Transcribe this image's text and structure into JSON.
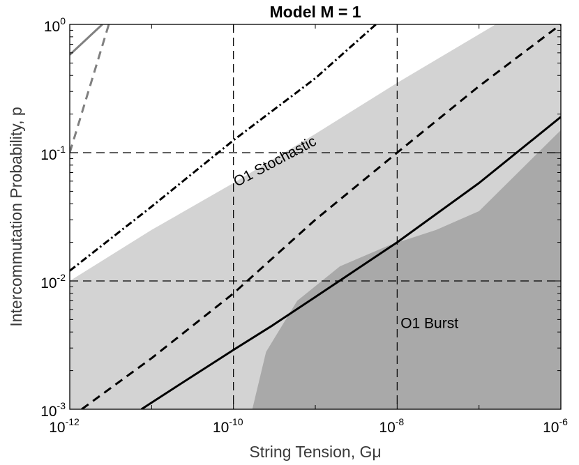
{
  "chart_data": {
    "type": "line",
    "title": "Model M = 1",
    "xlabel": "String Tension, Gμ",
    "ylabel": "Intercommutation Probability, p",
    "x_scale": "log",
    "y_scale": "log",
    "xlim": [
      1e-12,
      1e-06
    ],
    "ylim": [
      0.001,
      1
    ],
    "grid": false,
    "x_ticks": [
      {
        "base": "10",
        "exp": "-12",
        "value": 1e-12
      },
      {
        "base": "10",
        "exp": "-10",
        "value": 1e-10
      },
      {
        "base": "10",
        "exp": "-8",
        "value": 1e-08
      },
      {
        "base": "10",
        "exp": "-6",
        "value": 1e-06
      }
    ],
    "y_ticks": [
      {
        "base": "10",
        "exp": "-3",
        "value": 0.001
      },
      {
        "base": "10",
        "exp": "-2",
        "value": 0.01
      },
      {
        "base": "10",
        "exp": "-1",
        "value": 0.1
      },
      {
        "base": "10",
        "exp": "0",
        "value": 1
      }
    ],
    "reference_lines": [
      {
        "orientation": "vertical",
        "value": 1e-10,
        "style": "dashed"
      },
      {
        "orientation": "vertical",
        "value": 1e-08,
        "style": "dashed"
      },
      {
        "orientation": "horizontal",
        "value": 0.1,
        "style": "dashed"
      },
      {
        "orientation": "horizontal",
        "value": 0.01,
        "style": "dashed"
      }
    ],
    "regions": [
      {
        "label": "O1 Stochastic",
        "color": "#d3d3d3",
        "upper_boundary": [
          {
            "x": 1e-12,
            "y": 0.01
          },
          {
            "x": 1e-11,
            "y": 0.025
          },
          {
            "x": 1e-10,
            "y": 0.058
          },
          {
            "x": 1e-09,
            "y": 0.14
          },
          {
            "x": 1e-08,
            "y": 0.35
          },
          {
            "x": 1.6e-07,
            "y": 1.0
          }
        ],
        "lower_boundary": "ylim"
      },
      {
        "label": "O1 Burst",
        "color": "#a9a9a9",
        "upper_boundary": [
          {
            "x": 1.7e-10,
            "y": 0.001
          },
          {
            "x": 2.5e-10,
            "y": 0.0028
          },
          {
            "x": 6e-10,
            "y": 0.007
          },
          {
            "x": 2e-09,
            "y": 0.013
          },
          {
            "x": 8e-09,
            "y": 0.019
          },
          {
            "x": 3e-08,
            "y": 0.025
          },
          {
            "x": 1e-07,
            "y": 0.035
          },
          {
            "x": 3e-07,
            "y": 0.07
          },
          {
            "x": 1e-06,
            "y": 0.15
          }
        ],
        "lower_boundary": "ylim"
      }
    ],
    "series": [
      {
        "style": "solid",
        "color": "#000000",
        "points": [
          {
            "x": 7.5e-12,
            "y": 0.001
          },
          {
            "x": 2e-11,
            "y": 0.0015
          },
          {
            "x": 1e-10,
            "y": 0.0029
          },
          {
            "x": 3e-10,
            "y": 0.0045
          },
          {
            "x": 1e-09,
            "y": 0.0075
          },
          {
            "x": 1e-08,
            "y": 0.02
          },
          {
            "x": 1e-07,
            "y": 0.058
          },
          {
            "x": 1e-06,
            "y": 0.19
          }
        ]
      },
      {
        "style": "dashed",
        "color": "#000000",
        "points": [
          {
            "x": 1.4e-12,
            "y": 0.001
          },
          {
            "x": 1e-11,
            "y": 0.0025
          },
          {
            "x": 1e-10,
            "y": 0.008
          },
          {
            "x": 1e-09,
            "y": 0.03
          },
          {
            "x": 1e-08,
            "y": 0.1
          },
          {
            "x": 1e-07,
            "y": 0.33
          },
          {
            "x": 1e-06,
            "y": 1.0
          }
        ]
      },
      {
        "style": "dash-dot",
        "color": "#000000",
        "points": [
          {
            "x": 1e-12,
            "y": 0.012
          },
          {
            "x": 1e-11,
            "y": 0.038
          },
          {
            "x": 1e-10,
            "y": 0.125
          },
          {
            "x": 1e-09,
            "y": 0.38
          },
          {
            "x": 5.5e-09,
            "y": 1.0
          }
        ]
      },
      {
        "style": "solid",
        "color": "#808080",
        "points": [
          {
            "x": 1e-12,
            "y": 0.58
          },
          {
            "x": 2.5e-12,
            "y": 1.0
          }
        ]
      },
      {
        "style": "dashed",
        "color": "#808080",
        "points": [
          {
            "x": 1e-12,
            "y": 0.1
          },
          {
            "x": 3e-12,
            "y": 1.0
          }
        ]
      }
    ],
    "annotations": [
      {
        "text": "O1 Stochastic",
        "x": 1.1e-10,
        "y": 0.054,
        "rotation": -28
      },
      {
        "text": "O1 Burst",
        "x": 1.1e-08,
        "y": 0.0043,
        "rotation": 0
      }
    ]
  }
}
